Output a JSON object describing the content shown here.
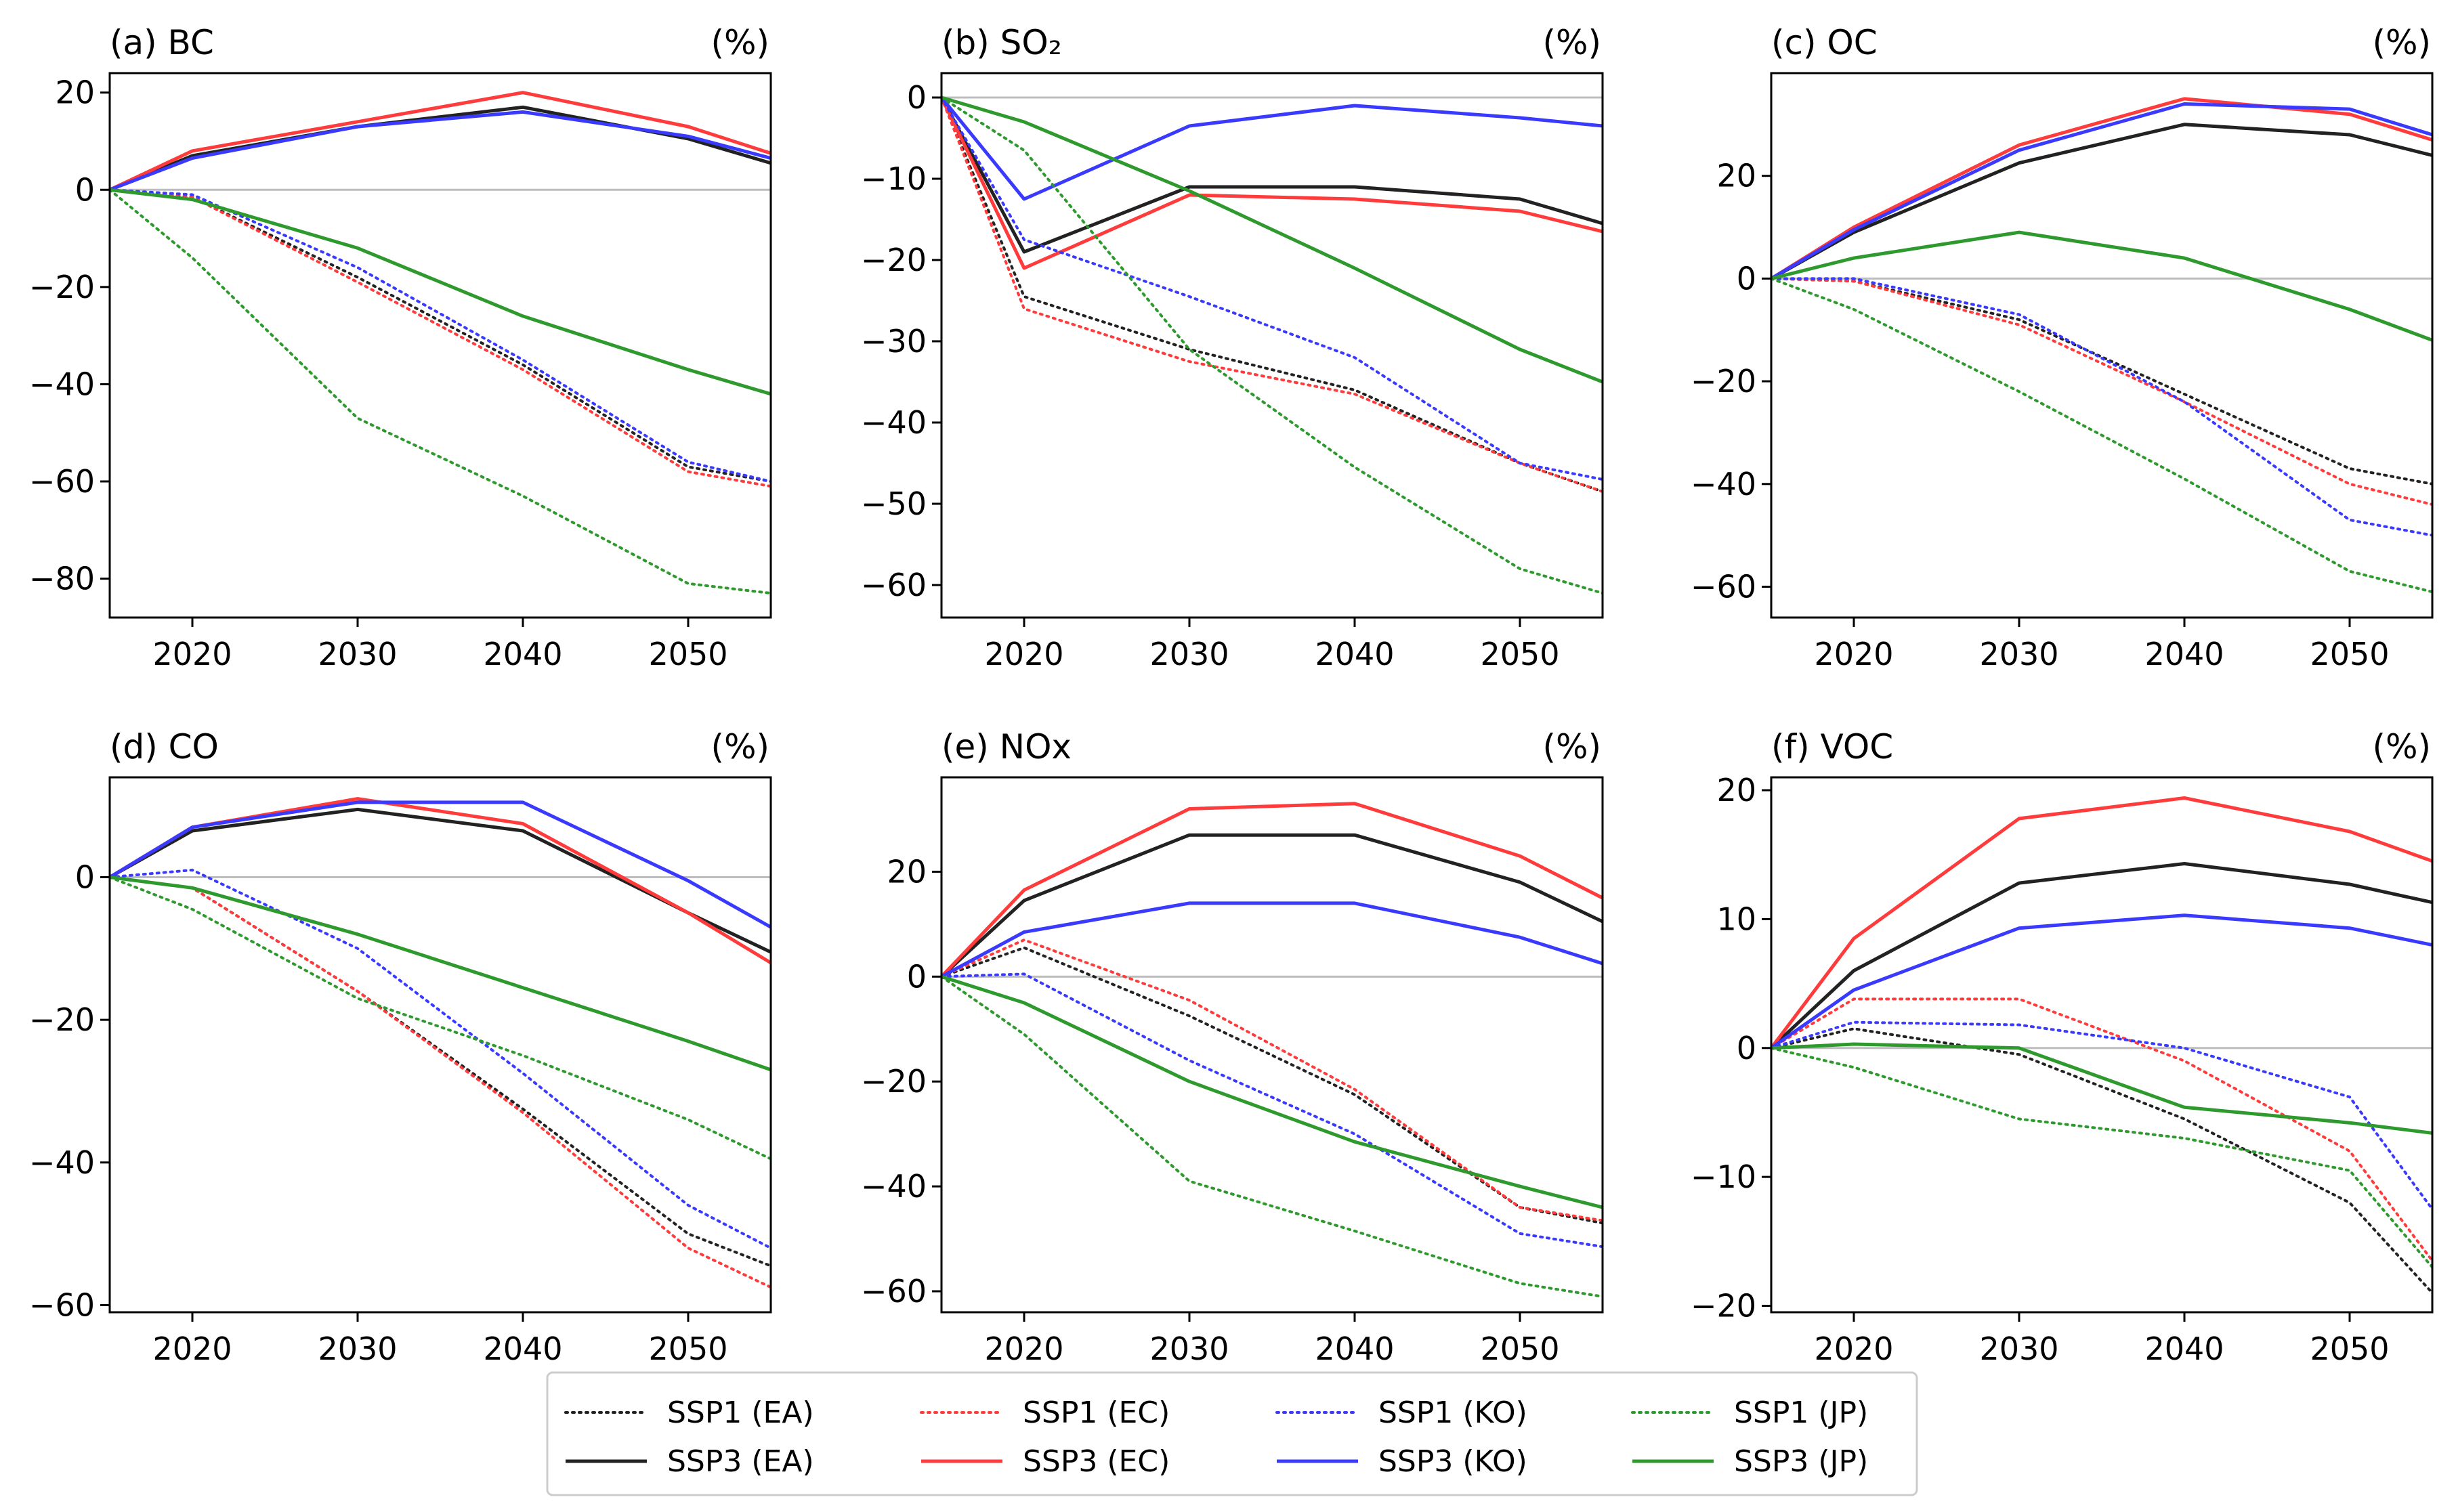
{
  "figure": {
    "x_ticks": [
      2020,
      2030,
      2040,
      2050
    ],
    "x_range": [
      2015,
      2055
    ],
    "series_styles": [
      {
        "key": "ssp1_ea",
        "name": "SSP1 (EA)",
        "color": "#222222",
        "dash": "dotted"
      },
      {
        "key": "ssp3_ea",
        "name": "SSP3 (EA)",
        "color": "#222222",
        "dash": "solid"
      },
      {
        "key": "ssp1_ec",
        "name": "SSP1 (EC)",
        "color": "#ff3b3b",
        "dash": "dotted"
      },
      {
        "key": "ssp3_ec",
        "name": "SSP3 (EC)",
        "color": "#ff3b3b",
        "dash": "solid"
      },
      {
        "key": "ssp1_ko",
        "name": "SSP1 (KO)",
        "color": "#3a3aff",
        "dash": "dotted"
      },
      {
        "key": "ssp3_ko",
        "name": "SSP3 (KO)",
        "color": "#3a3aff",
        "dash": "solid"
      },
      {
        "key": "ssp1_jp",
        "name": "SSP1 (JP)",
        "color": "#2e9a2e",
        "dash": "dotted"
      },
      {
        "key": "ssp3_jp",
        "name": "SSP3 (JP)",
        "color": "#2e9a2e",
        "dash": "solid"
      }
    ]
  },
  "legend": {
    "entries": [
      "SSP1 (EA)",
      "SSP1 (EC)",
      "SSP1 (KO)",
      "SSP1 (JP)",
      "SSP3 (EA)",
      "SSP3 (EC)",
      "SSP3 (KO)",
      "SSP3 (JP)"
    ]
  },
  "chart_data": [
    {
      "type": "line",
      "panel": "a",
      "title": "(a) BC",
      "unit": "(%)",
      "x": [
        2015,
        2020,
        2030,
        2040,
        2050,
        2055
      ],
      "ylim": [
        -88,
        24
      ],
      "yticks": [
        20,
        0,
        -20,
        -40,
        -60,
        -80
      ],
      "series": {
        "ssp1_ea": [
          0,
          -1.5,
          -18,
          -36,
          -57,
          -60
        ],
        "ssp3_ea": [
          0,
          7,
          13,
          17,
          10.5,
          5.5
        ],
        "ssp1_ec": [
          0,
          -1.5,
          -19,
          -37,
          -58,
          -61
        ],
        "ssp3_ec": [
          0,
          8,
          14,
          20,
          13,
          7.5
        ],
        "ssp1_ko": [
          0,
          -1,
          -16,
          -35,
          -56,
          -60
        ],
        "ssp3_ko": [
          0,
          6.5,
          13,
          16,
          11,
          6.5
        ],
        "ssp1_jp": [
          0,
          -14,
          -47,
          -63,
          -81,
          -83
        ],
        "ssp3_jp": [
          0,
          -2,
          -12,
          -26,
          -37,
          -42
        ]
      }
    },
    {
      "type": "line",
      "panel": "b",
      "title": "(b) SO₂",
      "unit": "(%)",
      "x": [
        2015,
        2020,
        2030,
        2040,
        2050,
        2055
      ],
      "ylim": [
        -64,
        3
      ],
      "yticks": [
        0,
        -10,
        -20,
        -30,
        -40,
        -50,
        -60
      ],
      "series": {
        "ssp1_ea": [
          0,
          -24.5,
          -31,
          -36,
          -45,
          -48.5
        ],
        "ssp3_ea": [
          0,
          -19,
          -11,
          -11,
          -12.5,
          -15.5
        ],
        "ssp1_ec": [
          0,
          -26,
          -32.5,
          -36.5,
          -45,
          -48.5
        ],
        "ssp3_ec": [
          0,
          -21,
          -12,
          -12.5,
          -14,
          -16.5
        ],
        "ssp1_ko": [
          0,
          -17.5,
          -24.5,
          -32,
          -45,
          -47
        ],
        "ssp3_ko": [
          0,
          -12.5,
          -3.5,
          -1,
          -2.5,
          -3.5
        ],
        "ssp1_jp": [
          0,
          -6.5,
          -31,
          -45.5,
          -58,
          -61
        ],
        "ssp3_jp": [
          0,
          -3,
          -11.5,
          -21,
          -31,
          -35
        ]
      }
    },
    {
      "type": "line",
      "panel": "c",
      "title": "(c) OC",
      "unit": "(%)",
      "x": [
        2015,
        2020,
        2030,
        2040,
        2050,
        2055
      ],
      "ylim": [
        -66,
        40
      ],
      "yticks": [
        20,
        0,
        -20,
        -40,
        -60
      ],
      "series": {
        "ssp1_ea": [
          0,
          -0.5,
          -8,
          -22.5,
          -37,
          -40
        ],
        "ssp3_ea": [
          0,
          9,
          22.5,
          30,
          28,
          24
        ],
        "ssp1_ec": [
          0,
          -0.5,
          -9,
          -24,
          -40,
          -44
        ],
        "ssp3_ec": [
          0,
          10,
          26,
          35,
          32,
          27
        ],
        "ssp1_ko": [
          0,
          0,
          -7,
          -24,
          -47,
          -50
        ],
        "ssp3_ko": [
          0,
          9.5,
          25,
          34,
          33,
          28
        ],
        "ssp1_jp": [
          0,
          -6,
          -22,
          -39,
          -57,
          -61
        ],
        "ssp3_jp": [
          0,
          4,
          9,
          4,
          -6,
          -12
        ]
      }
    },
    {
      "type": "line",
      "panel": "d",
      "title": "(d) CO",
      "unit": "(%)",
      "x": [
        2015,
        2020,
        2030,
        2040,
        2050,
        2055
      ],
      "ylim": [
        -61,
        14
      ],
      "yticks": [
        0,
        -20,
        -40,
        -60
      ],
      "series": {
        "ssp1_ea": [
          0,
          -1.5,
          -16,
          -32.5,
          -50,
          -54.5
        ],
        "ssp3_ea": [
          0,
          6.5,
          9.5,
          6.5,
          -5,
          -10.5
        ],
        "ssp1_ec": [
          0,
          -1.5,
          -16,
          -33,
          -52,
          -57.5
        ],
        "ssp3_ec": [
          0,
          7,
          11,
          7.5,
          -5,
          -12
        ],
        "ssp1_ko": [
          0,
          1,
          -10,
          -27.5,
          -46,
          -52
        ],
        "ssp3_ko": [
          0,
          7,
          10.5,
          10.5,
          -0.5,
          -7
        ],
        "ssp1_jp": [
          0,
          -4.5,
          -17,
          -25,
          -34,
          -39.5
        ],
        "ssp3_jp": [
          0,
          -1.5,
          -8,
          -15.5,
          -23,
          -27
        ]
      }
    },
    {
      "type": "line",
      "panel": "e",
      "title": "(e) NOx",
      "unit": "(%)",
      "x": [
        2015,
        2020,
        2030,
        2040,
        2050,
        2055
      ],
      "ylim": [
        -64,
        38
      ],
      "yticks": [
        20,
        0,
        -20,
        -40,
        -60
      ],
      "series": {
        "ssp1_ea": [
          0,
          5.5,
          -7.5,
          -22.5,
          -44,
          -47
        ],
        "ssp3_ea": [
          0,
          14.5,
          27,
          27,
          18,
          10.5
        ],
        "ssp1_ec": [
          0,
          7,
          -4.5,
          -21.5,
          -44,
          -46.5
        ],
        "ssp3_ec": [
          0,
          16.5,
          32,
          33,
          23,
          15
        ],
        "ssp1_ko": [
          0,
          0.5,
          -16,
          -30,
          -49,
          -51.5
        ],
        "ssp3_ko": [
          0,
          8.5,
          14,
          14,
          7.5,
          2.5
        ],
        "ssp1_jp": [
          0,
          -11,
          -39,
          -48.5,
          -58.5,
          -61
        ],
        "ssp3_jp": [
          0,
          -5,
          -20,
          -31.5,
          -40,
          -44
        ]
      }
    },
    {
      "type": "line",
      "panel": "f",
      "title": "(f) VOC",
      "unit": "(%)",
      "x": [
        2015,
        2020,
        2030,
        2040,
        2050,
        2055
      ],
      "ylim": [
        -20.5,
        21
      ],
      "yticks": [
        20,
        10,
        0,
        -10,
        -20
      ],
      "series": {
        "ssp1_ea": [
          0,
          1.5,
          -0.5,
          -5.5,
          -12,
          -19
        ],
        "ssp3_ea": [
          0,
          6,
          12.8,
          14.3,
          12.7,
          11.3
        ],
        "ssp1_ec": [
          0,
          3.8,
          3.8,
          -1,
          -8,
          -16.5
        ],
        "ssp3_ec": [
          0,
          8.5,
          17.8,
          19.4,
          16.8,
          14.5
        ],
        "ssp1_ko": [
          0,
          2,
          1.8,
          0,
          -3.8,
          -12.5
        ],
        "ssp3_ko": [
          0,
          4.5,
          9.3,
          10.3,
          9.3,
          8
        ],
        "ssp1_jp": [
          0,
          -1.5,
          -5.5,
          -7,
          -9.5,
          -17
        ],
        "ssp3_jp": [
          0,
          0.3,
          0,
          -4.6,
          -5.8,
          -6.6
        ]
      }
    }
  ]
}
